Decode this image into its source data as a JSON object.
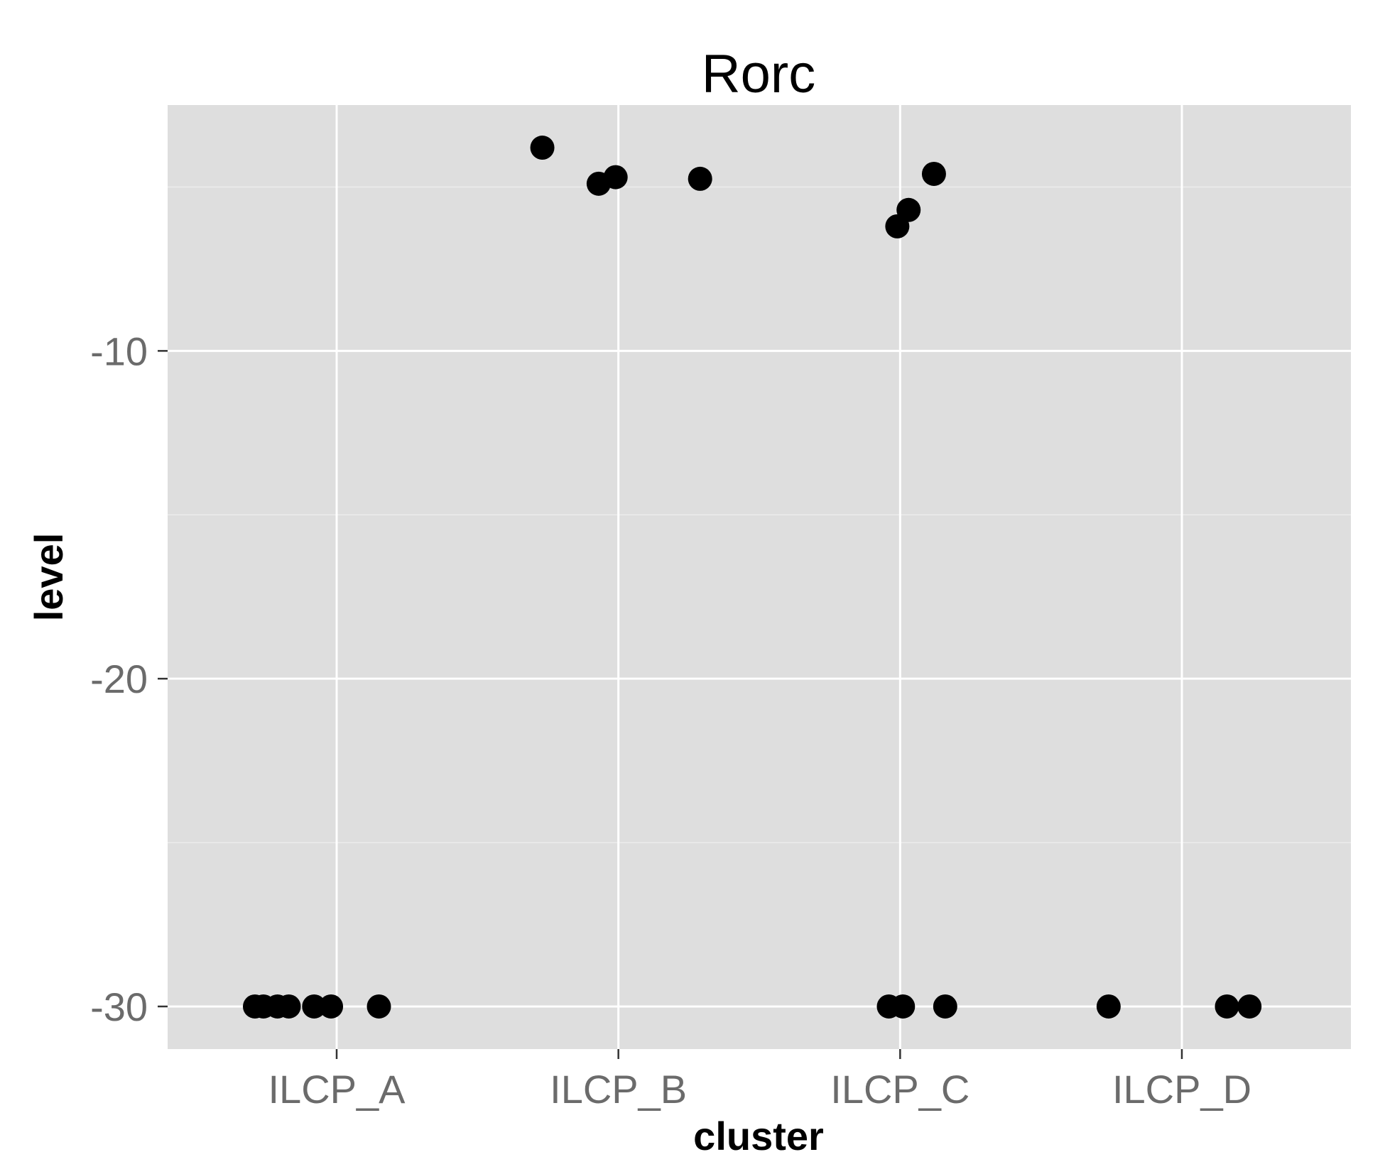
{
  "chart_data": {
    "type": "scatter",
    "title": "Rorc",
    "xlabel": "cluster",
    "ylabel": "level",
    "categories": [
      "ILCP_A",
      "ILCP_B",
      "ILCP_C",
      "ILCP_D"
    ],
    "ylim": [
      -31.3,
      -2.5
    ],
    "y_ticks": [
      -10,
      -20,
      -30
    ],
    "y_tick_labels": [
      "-10",
      "-20",
      "-30"
    ],
    "grid": true,
    "points": [
      {
        "category": "ILCP_A",
        "x": 0.71,
        "y": -30
      },
      {
        "category": "ILCP_A",
        "x": 0.74,
        "y": -30
      },
      {
        "category": "ILCP_A",
        "x": 0.79,
        "y": -30
      },
      {
        "category": "ILCP_A",
        "x": 0.83,
        "y": -30
      },
      {
        "category": "ILCP_A",
        "x": 0.92,
        "y": -30
      },
      {
        "category": "ILCP_A",
        "x": 0.98,
        "y": -30
      },
      {
        "category": "ILCP_A",
        "x": 1.15,
        "y": -30
      },
      {
        "category": "ILCP_B",
        "x": 1.73,
        "y": -3.8
      },
      {
        "category": "ILCP_B",
        "x": 1.93,
        "y": -4.9
      },
      {
        "category": "ILCP_B",
        "x": 1.99,
        "y": -4.7
      },
      {
        "category": "ILCP_B",
        "x": 2.29,
        "y": -4.75
      },
      {
        "category": "ILCP_C",
        "x": 2.96,
        "y": -30
      },
      {
        "category": "ILCP_C",
        "x": 3.01,
        "y": -30
      },
      {
        "category": "ILCP_C",
        "x": 2.99,
        "y": -6.2
      },
      {
        "category": "ILCP_C",
        "x": 3.03,
        "y": -5.7
      },
      {
        "category": "ILCP_C",
        "x": 3.12,
        "y": -4.6
      },
      {
        "category": "ILCP_C",
        "x": 3.16,
        "y": -30
      },
      {
        "category": "ILCP_D",
        "x": 3.74,
        "y": -30
      },
      {
        "category": "ILCP_D",
        "x": 4.16,
        "y": -30
      },
      {
        "category": "ILCP_D",
        "x": 4.24,
        "y": -30
      }
    ]
  }
}
